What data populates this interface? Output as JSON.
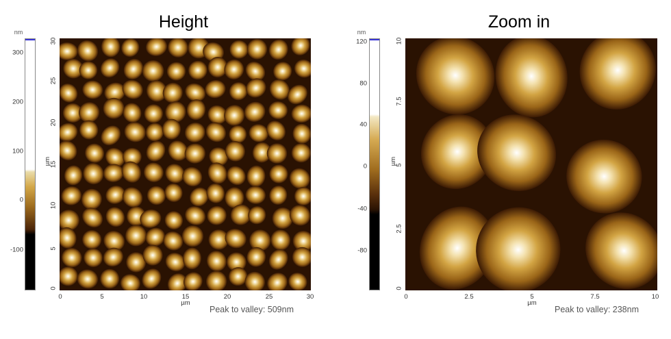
{
  "panels": [
    {
      "title": "Height",
      "colorbar": {
        "unit": "nm",
        "ticks": [
          "300",
          "200",
          "100",
          "0",
          "-100"
        ]
      },
      "axes": {
        "y_ticks": [
          "30",
          "25",
          "20",
          "15",
          "10",
          "5",
          "0"
        ],
        "x_ticks": [
          "0",
          "5",
          "10",
          "15",
          "20",
          "25",
          "30"
        ],
        "x_unit": "µm",
        "y_unit": "µm"
      },
      "peak_to_valley": "Peak to valley: 509nm"
    },
    {
      "title": "Zoom in",
      "colorbar": {
        "unit": "nm",
        "ticks": [
          "120",
          "80",
          "40",
          "0",
          "-40",
          "-80"
        ]
      },
      "axes": {
        "y_ticks": [
          "10",
          "7.5",
          "5",
          "2.5",
          "0"
        ],
        "x_ticks": [
          "0",
          "2.5",
          "5",
          "7.5",
          "10"
        ],
        "x_unit": "µm",
        "y_unit": "µm"
      },
      "peak_to_valley": "Peak to valley: 238nm"
    }
  ],
  "colors": {
    "scale_top": "#ffffff",
    "scale_mid": "#b8862a",
    "scale_dark": "#3a1a05",
    "scale_bottom": "#000000",
    "cap": "#3a36d8"
  }
}
